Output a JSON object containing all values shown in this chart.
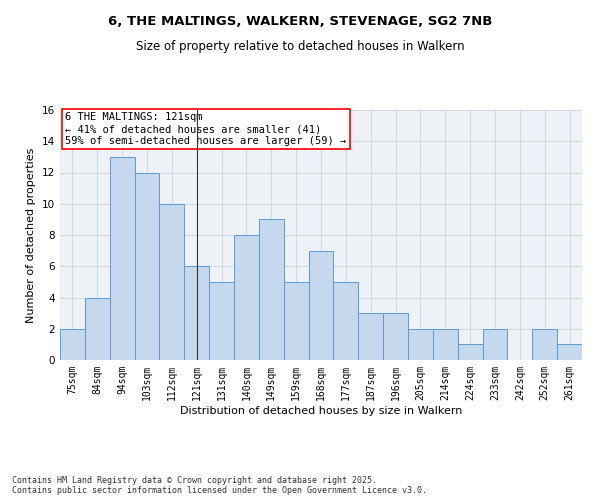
{
  "title_line1": "6, THE MALTINGS, WALKERN, STEVENAGE, SG2 7NB",
  "title_line2": "Size of property relative to detached houses in Walkern",
  "xlabel": "Distribution of detached houses by size in Walkern",
  "ylabel": "Number of detached properties",
  "categories": [
    "75sqm",
    "84sqm",
    "94sqm",
    "103sqm",
    "112sqm",
    "121sqm",
    "131sqm",
    "140sqm",
    "149sqm",
    "159sqm",
    "168sqm",
    "177sqm",
    "187sqm",
    "196sqm",
    "205sqm",
    "214sqm",
    "224sqm",
    "233sqm",
    "242sqm",
    "252sqm",
    "261sqm"
  ],
  "values": [
    2,
    4,
    13,
    12,
    10,
    6,
    5,
    8,
    9,
    5,
    7,
    5,
    3,
    3,
    2,
    2,
    1,
    2,
    0,
    2,
    1
  ],
  "bar_color": "#c5d8ed",
  "bar_edge_color": "#5b9bd5",
  "highlight_index": 5,
  "highlight_line_color": "#333333",
  "annotation_text": "6 THE MALTINGS: 121sqm\n← 41% of detached houses are smaller (41)\n59% of semi-detached houses are larger (59) →",
  "annotation_box_color": "white",
  "annotation_box_edge_color": "red",
  "ylim": [
    0,
    16
  ],
  "yticks": [
    0,
    2,
    4,
    6,
    8,
    10,
    12,
    14,
    16
  ],
  "grid_color": "#c8d4e0",
  "background_color": "#eef2f7",
  "footnote": "Contains HM Land Registry data © Crown copyright and database right 2025.\nContains public sector information licensed under the Open Government Licence v3.0.",
  "title_fontsize": 9.5,
  "subtitle_fontsize": 8.5,
  "tick_fontsize": 7,
  "label_fontsize": 8,
  "annotation_fontsize": 7.5,
  "footnote_fontsize": 6
}
